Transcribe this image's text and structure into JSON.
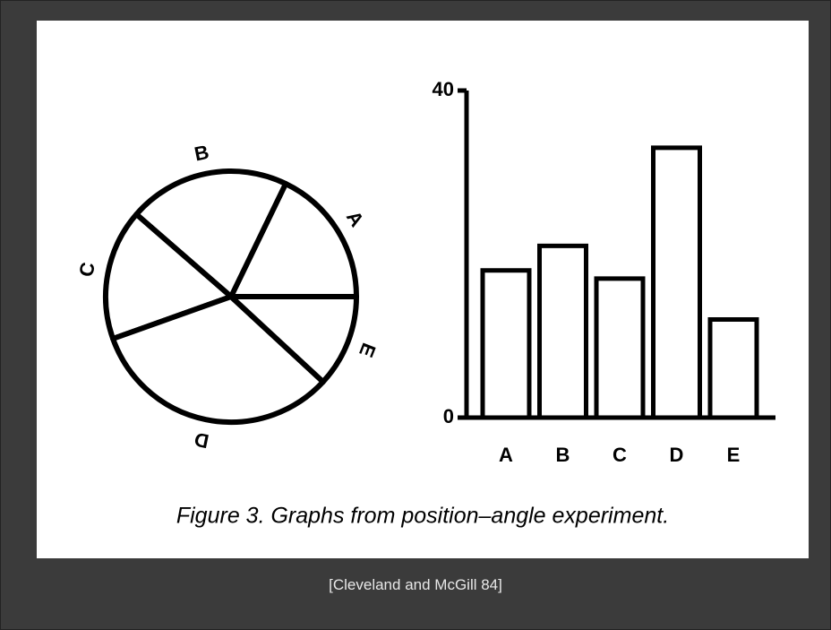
{
  "chart_data": [
    {
      "type": "pie",
      "categories": [
        "A",
        "B",
        "C",
        "D",
        "E"
      ],
      "values": [
        18,
        21,
        17,
        33,
        12
      ],
      "color": "#000000"
    },
    {
      "type": "bar",
      "categories": [
        "A",
        "B",
        "C",
        "D",
        "E"
      ],
      "values": [
        18,
        21,
        17,
        33,
        12
      ],
      "color": "#000000",
      "ylim": [
        0,
        40
      ],
      "yticks": [
        0,
        40
      ]
    }
  ],
  "caption": "Figure 3. Graphs from position–angle experiment.",
  "credit": "[Cleveland and McGill 84]"
}
